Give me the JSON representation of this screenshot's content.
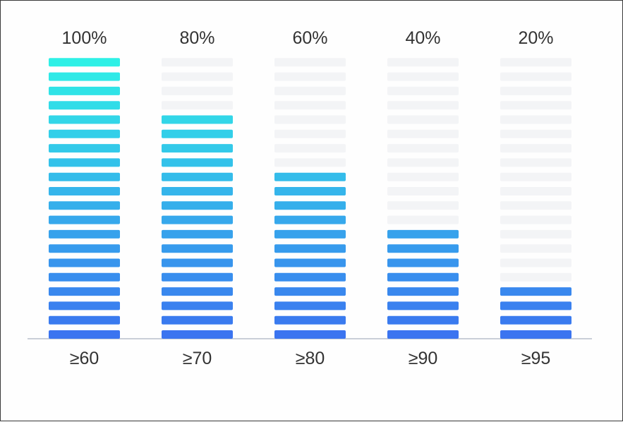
{
  "chart_data": {
    "type": "bar",
    "categories": [
      "≥60",
      "≥70",
      "≥80",
      "≥90",
      "≥95"
    ],
    "values": [
      100,
      80,
      60,
      40,
      20
    ],
    "value_labels": [
      "100%",
      "80%",
      "60%",
      "40%",
      "20%"
    ],
    "ylim": [
      0,
      100
    ],
    "segments_per_bar": 20,
    "colors": {
      "segment_bottom": "#3b74f0",
      "segment_top": "#2ff0e6",
      "segment_empty": "#f3f4f6",
      "axis": "#b8bfcc",
      "text": "#333333"
    },
    "grid": false,
    "legend": "none"
  }
}
